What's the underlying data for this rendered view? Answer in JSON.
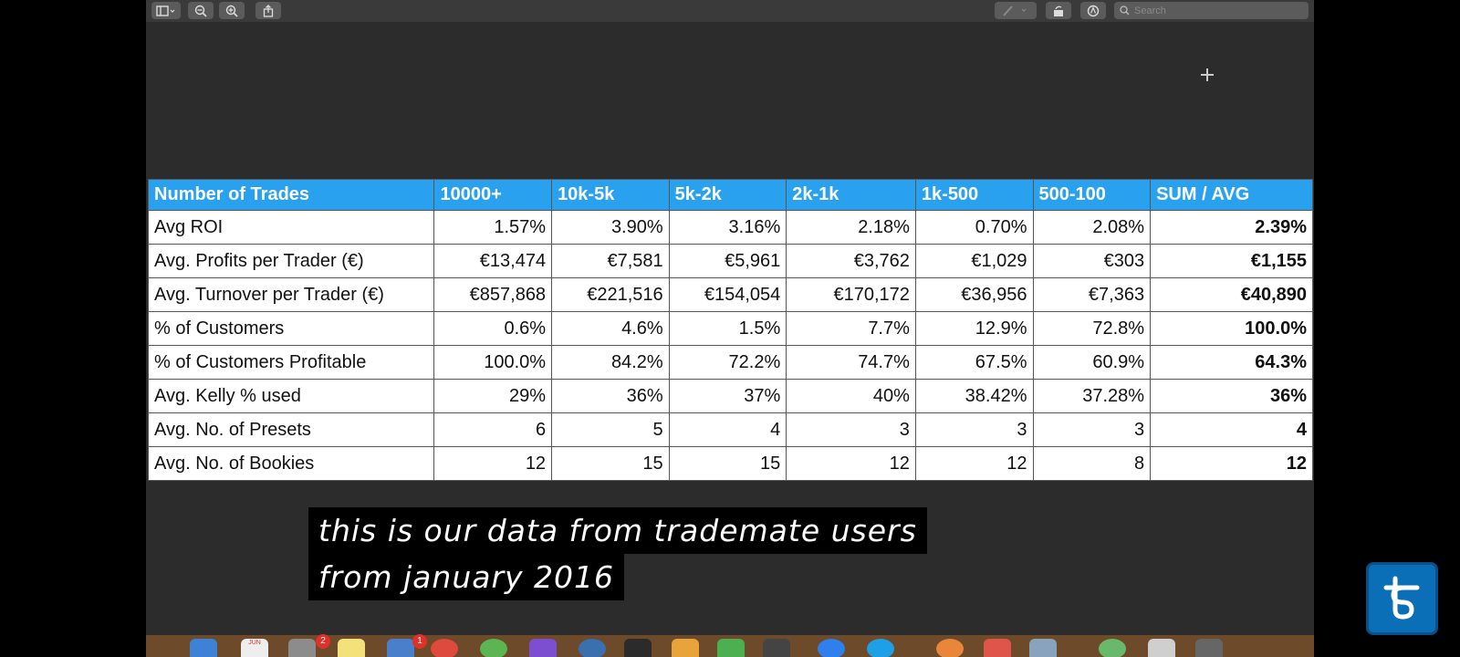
{
  "toolbar": {
    "search_placeholder": "Search",
    "icons": [
      "sidebar-toggle-icon",
      "zoom-out-icon",
      "zoom-in-icon",
      "share-icon",
      "markup-pen-icon",
      "rotate-icon",
      "annotate-icon",
      "search-icon"
    ]
  },
  "table": {
    "headers": [
      "Number of Trades",
      "10000+",
      "10k-5k",
      "5k-2k",
      "2k-1k",
      "1k-500",
      "500-100",
      "SUM / AVG"
    ],
    "rows": [
      [
        "Avg ROI",
        "1.57%",
        "3.90%",
        "3.16%",
        "2.18%",
        "0.70%",
        "2.08%",
        "2.39%"
      ],
      [
        "Avg. Profits per Trader (€)",
        "€13,474",
        "€7,581",
        "€5,961",
        "€3,762",
        "€1,029",
        "€303",
        "€1,155"
      ],
      [
        "Avg. Turnover per Trader (€)",
        "€857,868",
        "€221,516",
        "€154,054",
        "€170,172",
        "€36,956",
        "€7,363",
        "€40,890"
      ],
      [
        "% of Customers",
        "0.6%",
        "4.6%",
        "1.5%",
        "7.7%",
        "12.9%",
        "72.8%",
        "100.0%"
      ],
      [
        "% of Customers Profitable",
        "100.0%",
        "84.2%",
        "72.2%",
        "74.7%",
        "67.5%",
        "60.9%",
        "64.3%"
      ],
      [
        "Avg. Kelly % used",
        "29%",
        "36%",
        "37%",
        "40%",
        "38.42%",
        "37.28%",
        "36%"
      ],
      [
        "Avg. No. of Presets",
        "6",
        "5",
        "4",
        "3",
        "3",
        "3",
        "4"
      ],
      [
        "Avg. No. of Bookies",
        "12",
        "15",
        "15",
        "12",
        "12",
        "8",
        "12"
      ]
    ]
  },
  "caption": {
    "line1": "this is our data from trademate users",
    "line2": "from january 2016"
  },
  "dock": {
    "badges": [
      "2",
      "1"
    ],
    "calendar_month": "JUN"
  },
  "colors": {
    "header_bg": "#2aa1ef",
    "window_bg": "#2c2c2c",
    "logo_bg": "#0b6fb8"
  }
}
